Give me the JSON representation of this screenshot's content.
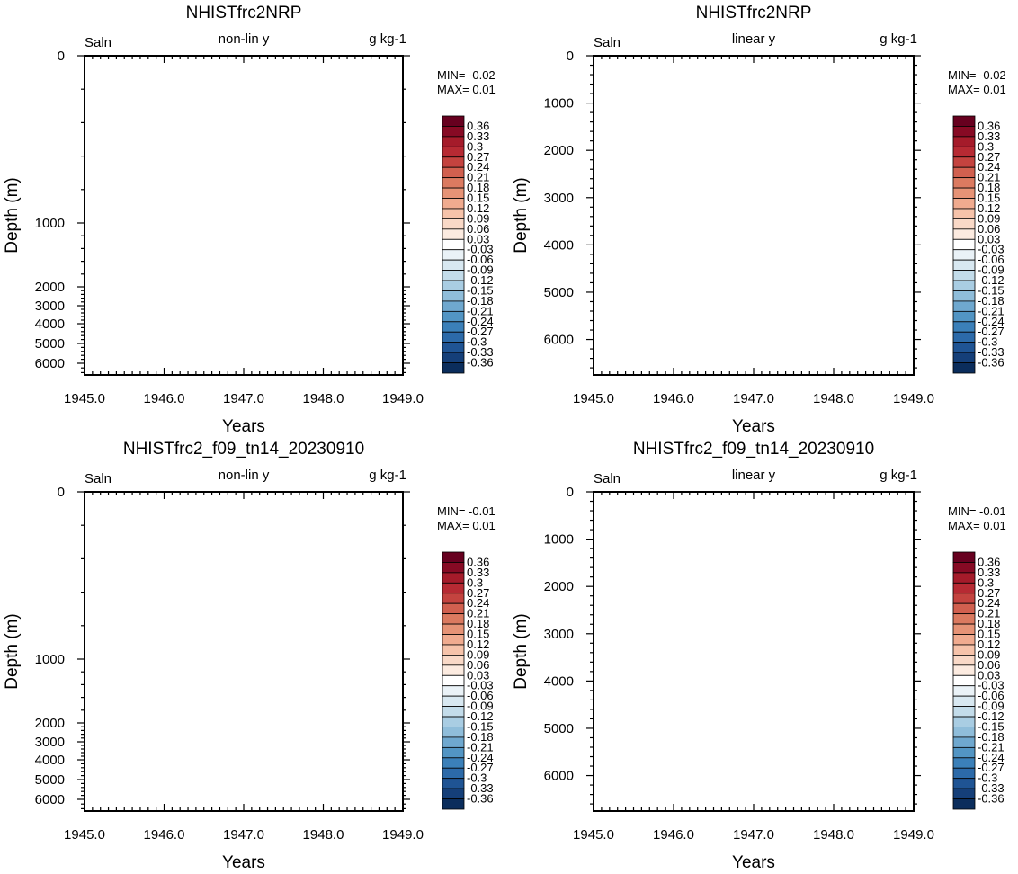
{
  "chart_data": [
    {
      "type": "heatmap",
      "title": "NHISTfrc2NRP",
      "left_string": "Saln",
      "center_string": "non-lin y",
      "right_string": "g kg-1",
      "xlabel": "Years",
      "ylabel": "Depth (m)",
      "x_ticks": [
        "1945.0",
        "1946.0",
        "1947.0",
        "1948.0",
        "1949.0"
      ],
      "xlim": [
        1945,
        1949
      ],
      "y_scale": "nonlinear",
      "y_ticks": [
        "0",
        "1000",
        "2000",
        "3000",
        "4000",
        "5000",
        "6000"
      ],
      "ylim": [
        0,
        6500
      ],
      "min_label": "MIN= -0.02",
      "max_label": "MAX=  0.01",
      "data_min": -0.02,
      "data_max": 0.01
    },
    {
      "type": "heatmap",
      "title": "NHISTfrc2NRP",
      "left_string": "Saln",
      "center_string": "linear y",
      "right_string": "g kg-1",
      "xlabel": "Years",
      "ylabel": "Depth (m)",
      "x_ticks": [
        "1945.0",
        "1946.0",
        "1947.0",
        "1948.0",
        "1949.0"
      ],
      "xlim": [
        1945,
        1949
      ],
      "y_scale": "linear",
      "y_ticks": [
        "0",
        "1000",
        "2000",
        "3000",
        "4000",
        "5000",
        "6000"
      ],
      "ylim": [
        0,
        6750
      ],
      "min_label": "MIN= -0.02",
      "max_label": "MAX=  0.01",
      "data_min": -0.02,
      "data_max": 0.01
    },
    {
      "type": "heatmap",
      "title": "NHISTfrc2_f09_tn14_20230910",
      "left_string": "Saln",
      "center_string": "non-lin y",
      "right_string": "g kg-1",
      "xlabel": "Years",
      "ylabel": "Depth (m)",
      "x_ticks": [
        "1945.0",
        "1946.0",
        "1947.0",
        "1948.0",
        "1949.0"
      ],
      "xlim": [
        1945,
        1949
      ],
      "y_scale": "nonlinear",
      "y_ticks": [
        "0",
        "1000",
        "2000",
        "3000",
        "4000",
        "5000",
        "6000"
      ],
      "ylim": [
        0,
        6500
      ],
      "min_label": "MIN= -0.01",
      "max_label": "MAX=  0.01",
      "data_min": -0.01,
      "data_max": 0.01
    },
    {
      "type": "heatmap",
      "title": "NHISTfrc2_f09_tn14_20230910",
      "left_string": "Saln",
      "center_string": "linear y",
      "right_string": "g kg-1",
      "xlabel": "Years",
      "ylabel": "Depth (m)",
      "x_ticks": [
        "1945.0",
        "1946.0",
        "1947.0",
        "1948.0",
        "1949.0"
      ],
      "xlim": [
        1945,
        1949
      ],
      "y_scale": "linear",
      "y_ticks": [
        "0",
        "1000",
        "2000",
        "3000",
        "4000",
        "5000",
        "6000"
      ],
      "ylim": [
        0,
        6750
      ],
      "min_label": "MIN= -0.01",
      "max_label": "MAX=  0.01",
      "data_min": -0.01,
      "data_max": 0.01
    }
  ],
  "colorbar": {
    "labels": [
      "0.36",
      "0.33",
      "0.3",
      "0.27",
      "0.24",
      "0.21",
      "0.18",
      "0.15",
      "0.12",
      "0.09",
      "0.06",
      "0.03",
      "-0.03",
      "-0.06",
      "-0.09",
      "-0.12",
      "-0.15",
      "-0.18",
      "-0.21",
      "-0.24",
      "-0.27",
      "-0.3",
      "-0.33",
      "-0.36"
    ],
    "colors": [
      "#67001f",
      "#870a24",
      "#a51b2a",
      "#b72a33",
      "#c4433f",
      "#d1604f",
      "#db7a60",
      "#e69376",
      "#f0ab8f",
      "#f6c3aa",
      "#f9d9c7",
      "#fcebe0",
      "#ffffff",
      "#eaf2f7",
      "#d8e8f1",
      "#c3dcea",
      "#a9cde3",
      "#8fbdda",
      "#6fa8cf",
      "#5295c4",
      "#3b80b9",
      "#2c6aa9",
      "#1f5494",
      "#153f79",
      "#0b2d5c"
    ]
  }
}
